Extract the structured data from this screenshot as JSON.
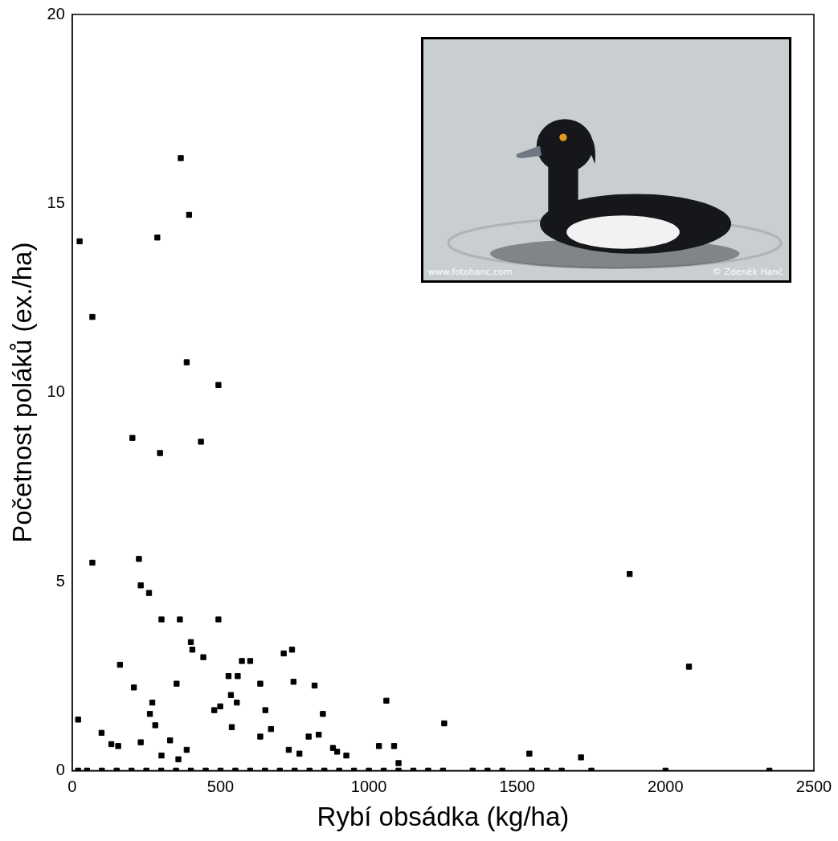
{
  "chart_data": {
    "type": "scatter",
    "x_label": "Rybí obsádka (kg/ha)",
    "y_label": "Početnost poláků (ex./ha)",
    "annotations": [
      "www.fotohanc.com",
      "© Zdeněk Hanč"
    ],
    "x": [
      25,
      68,
      68,
      20,
      366,
      394,
      287,
      386,
      493,
      203,
      296,
      434,
      225,
      231,
      259,
      301,
      363,
      493,
      1879,
      2079,
      400,
      405,
      161,
      208,
      352,
      442,
      527,
      558,
      572,
      600,
      713,
      741,
      746,
      634,
      555,
      535,
      499,
      479,
      651,
      670,
      634,
      817,
      845,
      1059,
      1254,
      538,
      262,
      99,
      132,
      155,
      231,
      386,
      797,
      831,
      879,
      893,
      924,
      1034,
      1085,
      730,
      766,
      1541,
      1715,
      330,
      301,
      358,
      270,
      280,
      1100,
      20,
      50,
      100,
      150,
      200,
      250,
      300,
      350,
      400,
      450,
      500,
      550,
      600,
      650,
      700,
      750,
      800,
      850,
      900,
      950,
      1000,
      1050,
      1100,
      1150,
      1200,
      1250,
      1350,
      1400,
      1450,
      1550,
      1600,
      1650,
      1750,
      2000,
      2350
    ],
    "values": [
      14.0,
      12.0,
      5.5,
      1.35,
      16.2,
      14.7,
      14.1,
      10.8,
      10.2,
      8.8,
      8.4,
      8.7,
      5.6,
      4.9,
      4.7,
      4.0,
      4.0,
      4.0,
      5.2,
      2.75,
      3.4,
      3.2,
      2.8,
      2.2,
      2.3,
      3.0,
      2.5,
      2.5,
      2.9,
      2.9,
      3.1,
      3.2,
      2.35,
      2.3,
      1.8,
      2.0,
      1.7,
      1.6,
      1.6,
      1.1,
      0.9,
      2.25,
      1.5,
      1.85,
      1.25,
      1.15,
      1.5,
      1.0,
      0.7,
      0.65,
      0.75,
      0.55,
      0.9,
      0.95,
      0.6,
      0.5,
      0.4,
      0.65,
      0.65,
      0.55,
      0.45,
      0.45,
      0.35,
      0.8,
      0.4,
      0.3,
      1.8,
      1.2,
      0.2,
      0,
      0,
      0,
      0,
      0,
      0,
      0,
      0,
      0,
      0,
      0,
      0,
      0,
      0,
      0,
      0,
      0,
      0,
      0,
      0,
      0,
      0,
      0,
      0,
      0,
      0,
      0,
      0,
      0,
      0,
      0,
      0,
      0,
      0,
      0
    ],
    "xlim": [
      0,
      2500
    ],
    "xticks": [
      0,
      500,
      1000,
      1500,
      2000,
      2500
    ],
    "ylim": [
      0,
      20
    ],
    "yticks": [
      0,
      5,
      10,
      15,
      20
    ],
    "color": "#000000",
    "marker": "square",
    "grid": false
  }
}
